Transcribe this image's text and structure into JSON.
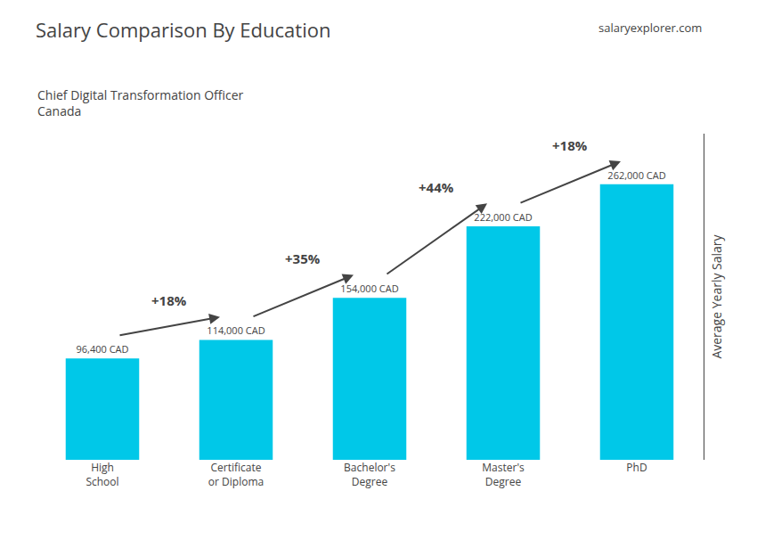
{
  "chart_data": {
    "type": "bar",
    "title": "Salary Comparison By Education",
    "subtitle": "Chief Digital Transformation Officer\nCanada",
    "ylabel": "Average Yearly Salary",
    "categories": [
      "High\nSchool",
      "Certificate\nor Diploma",
      "Bachelor's\nDegree",
      "Master's\nDegree",
      "PhD"
    ],
    "values": [
      96400,
      114000,
      154000,
      222000,
      262000
    ],
    "value_labels": [
      "96,400 CAD",
      "114,000 CAD",
      "154,000 CAD",
      "222,000 CAD",
      "262,000 CAD"
    ],
    "color": "#00c8e8",
    "annotations": [
      {
        "text": "salaryexplorer.com"
      },
      {
        "text": "+18%",
        "from": "High\nSchool",
        "to": "Certificate\nor Diploma"
      },
      {
        "text": "+35%",
        "from": "Certificate\nor Diploma",
        "to": "Bachelor's\nDegree"
      },
      {
        "text": "+44%",
        "from": "Bachelor's\nDegree",
        "to": "Master's\nDegree"
      },
      {
        "text": "+18%",
        "from": "Master's\nDegree",
        "to": "PhD"
      }
    ],
    "ylim": [
      0,
      310000
    ],
    "yticks": [],
    "grid": false,
    "data_labels": true,
    "tick_labels": "x"
  }
}
